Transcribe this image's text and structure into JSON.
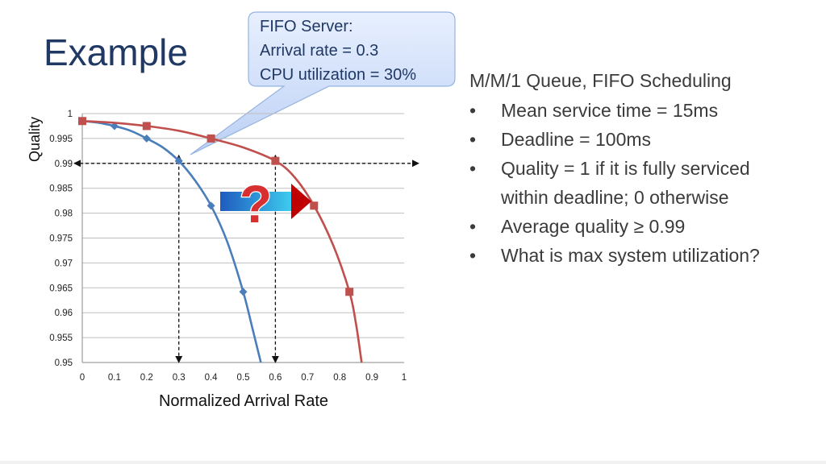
{
  "slide": {
    "title": "Example"
  },
  "callout": {
    "lines": [
      "FIFO Server:",
      "Arrival rate = 0.3",
      "CPU utilization = 30%"
    ]
  },
  "bullets": {
    "heading": "M/M/1 Queue, FIFO Scheduling",
    "marker": "•",
    "items": [
      [
        "Mean service time = 15ms"
      ],
      [
        "Deadline = 100ms"
      ],
      [
        "Quality = 1 if it is fully serviced",
        "within deadline; 0 otherwise"
      ],
      [
        "Average quality ≥ 0.99"
      ],
      [
        "What is max system utilization?"
      ]
    ]
  },
  "question_arrow": {
    "symbol": "?",
    "colors": {
      "gradient_start": "#1f5bbf",
      "gradient_end": "#3fd0f0",
      "arrow_head": "#c00000",
      "question_mark": "#d83030"
    }
  },
  "chart_data": {
    "type": "line",
    "title": "",
    "xlabel": "Normalized Arrival Rate",
    "ylabel": "Quality",
    "xlim": [
      0,
      1
    ],
    "ylim": [
      0.95,
      1
    ],
    "xticks": [
      "0",
      "0.1",
      "0.2",
      "0.3",
      "0.4",
      "0.5",
      "0.6",
      "0.7",
      "0.8",
      "0.9",
      "1"
    ],
    "yticks": [
      "1",
      "0.995",
      "0.99",
      "0.985",
      "0.98",
      "0.975",
      "0.97",
      "0.965",
      "0.96",
      "0.955",
      "0.95"
    ],
    "grid": "horizontal",
    "threshold_y": 0.99,
    "series": [
      {
        "color": "#4a7ebb",
        "marker": "diamond",
        "points": [
          [
            0.0,
            0.9985
          ],
          [
            0.1,
            0.9975
          ],
          [
            0.2,
            0.995
          ],
          [
            0.3,
            0.9905
          ],
          [
            0.4,
            0.9815
          ],
          [
            0.5,
            0.9642
          ]
        ],
        "curve": [
          [
            0.0,
            0.9985
          ],
          [
            0.05,
            0.99815
          ],
          [
            0.1,
            0.9975
          ],
          [
            0.15,
            0.99655
          ],
          [
            0.2,
            0.995
          ],
          [
            0.25,
            0.9932
          ],
          [
            0.3,
            0.9905
          ],
          [
            0.35,
            0.9866
          ],
          [
            0.4,
            0.9815
          ],
          [
            0.45,
            0.9743
          ],
          [
            0.5,
            0.9642
          ],
          [
            0.53,
            0.9565
          ],
          [
            0.555,
            0.95
          ]
        ]
      },
      {
        "color": "#c0504d",
        "marker": "square",
        "points": [
          [
            0.0,
            0.9985
          ],
          [
            0.2,
            0.9975
          ],
          [
            0.4,
            0.995
          ],
          [
            0.6,
            0.9905
          ],
          [
            0.72,
            0.9815
          ],
          [
            0.83,
            0.9642
          ]
        ],
        "curve": [
          [
            0.0,
            0.9985
          ],
          [
            0.1,
            0.99815
          ],
          [
            0.2,
            0.9975
          ],
          [
            0.3,
            0.99655
          ],
          [
            0.4,
            0.995
          ],
          [
            0.5,
            0.9932
          ],
          [
            0.6,
            0.9905
          ],
          [
            0.66,
            0.9872
          ],
          [
            0.72,
            0.9815
          ],
          [
            0.78,
            0.9735
          ],
          [
            0.83,
            0.9642
          ],
          [
            0.85,
            0.958
          ],
          [
            0.868,
            0.95
          ]
        ]
      }
    ],
    "drop_lines_x": [
      0.3,
      0.6
    ]
  }
}
